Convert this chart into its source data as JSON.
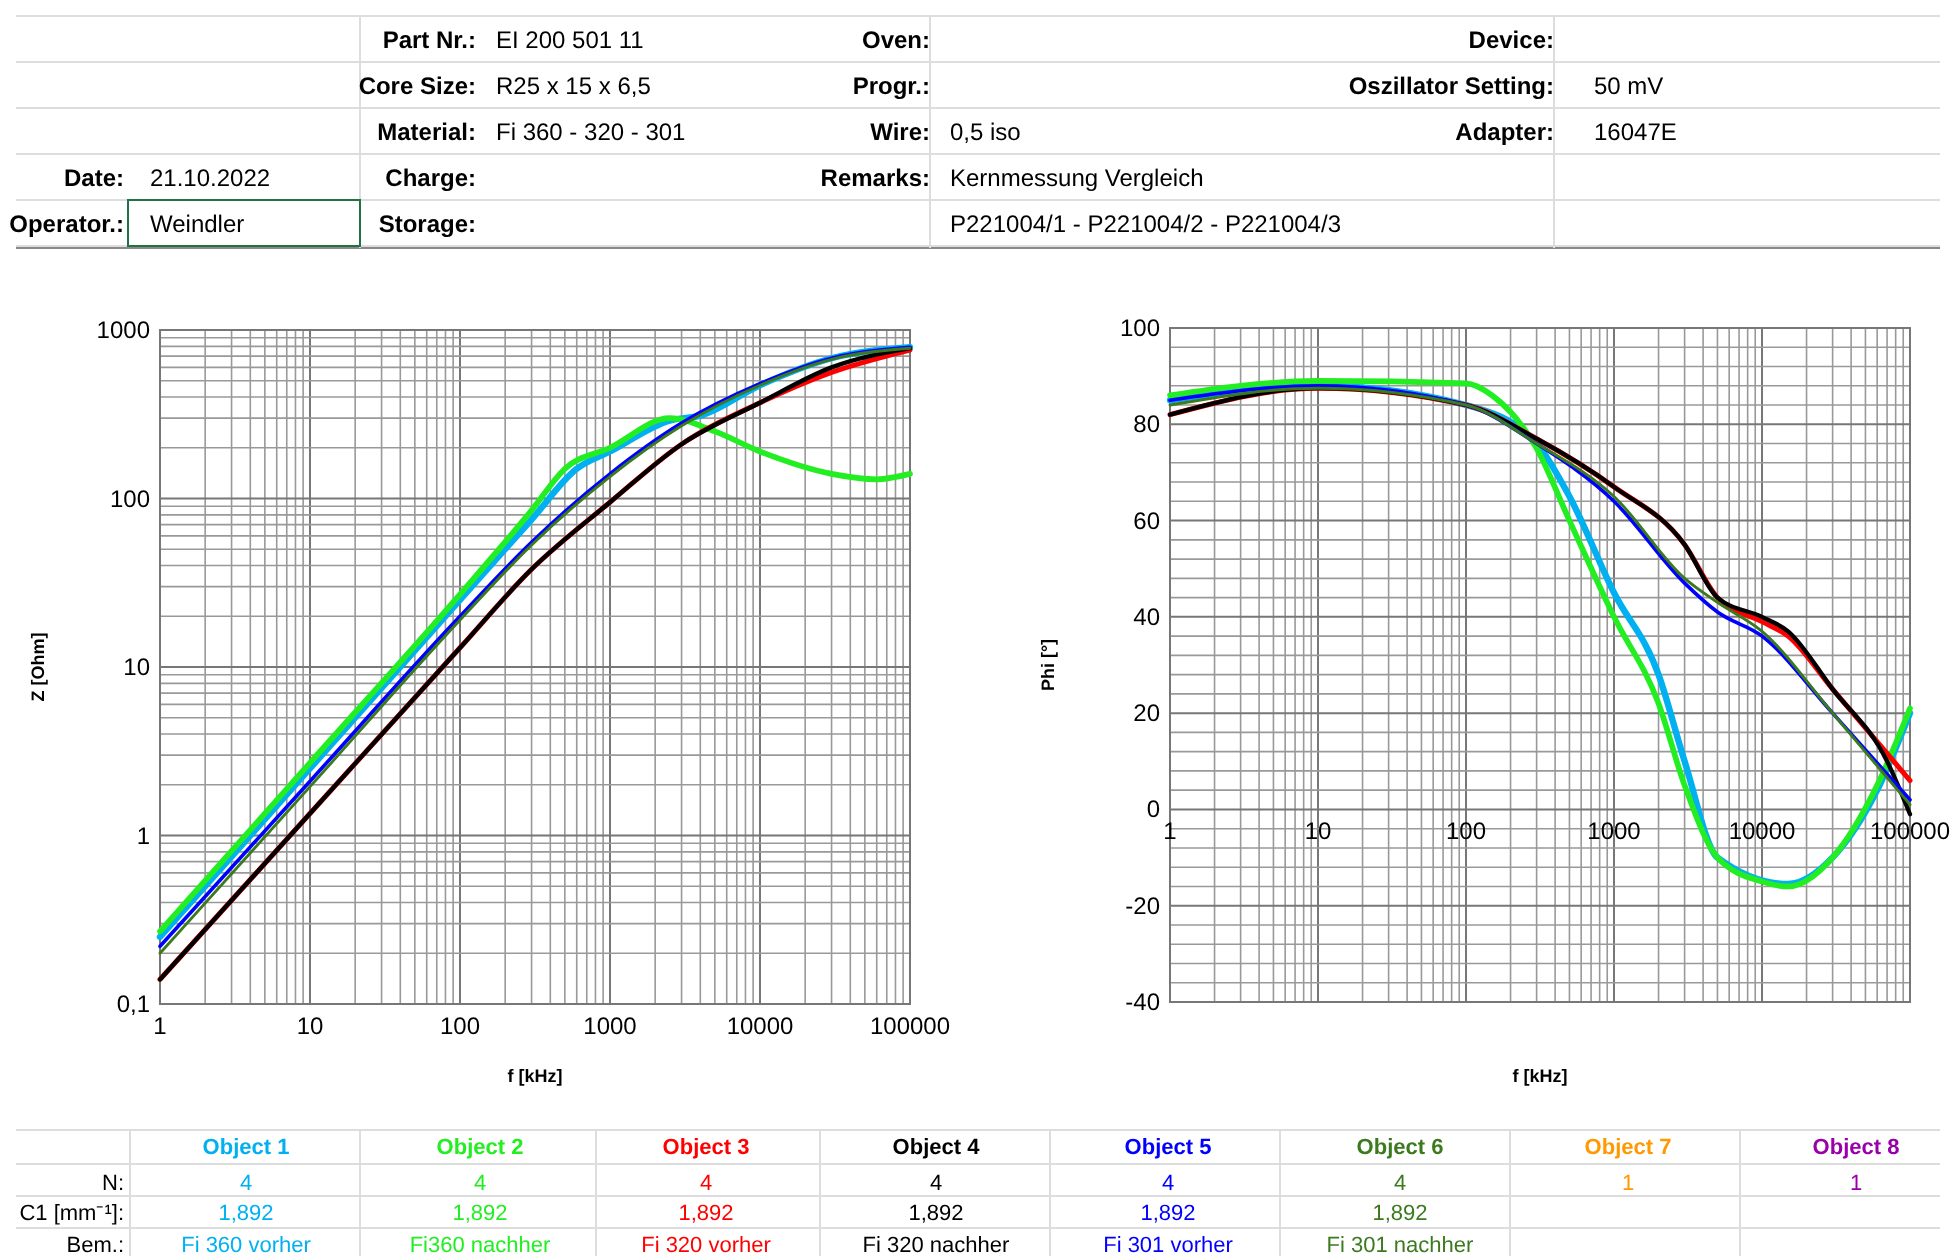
{
  "chart_data": [
    {
      "type": "other",
      "annotations": [
        "Part Nr.:",
        "EI 200 501 11",
        "Core Size:",
        "R25 x 15 x 6,5",
        "Material:",
        "Fi 360 - 320 - 301",
        "Oven:",
        "Progr.:",
        "Wire:",
        "0,5 iso",
        "Device:",
        "Oszillator Setting:",
        "50 mV",
        "Adapter:",
        "16047E",
        "Date:",
        "21.10.2022",
        "Operator.:",
        "Weindler",
        "Charge:",
        "Storage:",
        "Remarks:",
        "Kernmessung Vergleich",
        "P221004/1 - P221004/2 - P221004/3"
      ]
    },
    {
      "type": "line",
      "ylabel": "Z [Ohm]",
      "xlabel": "f [kHz]",
      "log": "xy",
      "grid": true,
      "legend": "bottom",
      "xlim": [
        1,
        100000
      ],
      "ylim": [
        0.1,
        1000
      ],
      "xticks": [
        1,
        10,
        100,
        1000,
        10000,
        100000
      ],
      "yticks": [
        {
          "value": 0.1,
          "label": "0,1"
        },
        1,
        10,
        100,
        1000
      ],
      "series": [
        {
          "name": "Object 1",
          "color": "#00b0f0",
          "x": [
            1,
            10,
            100,
            300,
            600,
            1000,
            2500,
            4000,
            10000,
            30000,
            100000
          ],
          "values": [
            0.25,
            2.5,
            25,
            75,
            150,
            190,
            290,
            310,
            470,
            680,
            790
          ]
        },
        {
          "name": "Object 2",
          "color": "#22ee22",
          "x": [
            1,
            10,
            100,
            300,
            500,
            1000,
            2500,
            5000,
            10000,
            30000,
            60000,
            100000
          ],
          "values": [
            0.27,
            2.7,
            27,
            85,
            150,
            200,
            300,
            250,
            190,
            140,
            130,
            140
          ]
        },
        {
          "name": "Object 3",
          "color": "#ff0000",
          "x": [
            1,
            10,
            100,
            300,
            1000,
            3000,
            10000,
            30000,
            100000
          ],
          "values": [
            0.14,
            1.35,
            13,
            38,
            95,
            210,
            370,
            560,
            760
          ]
        },
        {
          "name": "Object 4",
          "color": "#000000",
          "x": [
            1,
            10,
            100,
            300,
            1000,
            3000,
            10000,
            30000,
            100000
          ],
          "values": [
            0.14,
            1.35,
            13,
            38,
            95,
            210,
            370,
            600,
            780
          ]
        },
        {
          "name": "Object 5",
          "color": "#0000ff",
          "x": [
            1,
            10,
            100,
            300,
            1000,
            3000,
            10000,
            30000,
            100000
          ],
          "values": [
            0.22,
            2.1,
            20,
            55,
            140,
            280,
            480,
            680,
            790
          ]
        },
        {
          "name": "Object 6",
          "color": "#3c7a1e",
          "x": [
            1,
            10,
            100,
            300,
            1000,
            3000,
            10000,
            30000,
            100000
          ],
          "values": [
            0.2,
            1.95,
            19,
            53,
            135,
            270,
            470,
            670,
            780
          ]
        }
      ]
    },
    {
      "type": "line",
      "ylabel": "Phi [°]",
      "xlabel": "f [kHz]",
      "log": "x",
      "grid": true,
      "xlim": [
        1,
        100000
      ],
      "ylim": [
        -40,
        100
      ],
      "xticks": [
        1,
        10,
        100,
        1000,
        10000,
        100000
      ],
      "yticks": [
        -40,
        -20,
        0,
        20,
        40,
        60,
        80,
        100
      ],
      "series": [
        {
          "color": "#00b0f0",
          "x": [
            1,
            10,
            100,
            300,
            500,
            1000,
            2000,
            3000,
            5000,
            15000,
            30000,
            60000,
            100000
          ],
          "values": [
            85,
            88,
            84,
            76,
            65,
            45,
            28,
            10,
            -10,
            -15.5,
            -10,
            4,
            20
          ]
        },
        {
          "color": "#22ee22",
          "x": [
            1,
            3,
            10,
            100,
            150,
            300,
            500,
            1000,
            2000,
            3000,
            5000,
            10000,
            15000,
            30000,
            60000,
            100000
          ],
          "values": [
            86,
            88,
            89,
            88.5,
            86,
            75,
            60,
            40,
            22,
            5,
            -10,
            -15,
            -16,
            -10,
            5,
            21
          ]
        },
        {
          "color": "#ff0000",
          "x": [
            1,
            10,
            100,
            300,
            1000,
            3000,
            5000,
            10000,
            15000,
            30000,
            100000
          ],
          "values": [
            82,
            87.5,
            84,
            77,
            67,
            55,
            44,
            39,
            36,
            25,
            6
          ]
        },
        {
          "color": "#000000",
          "x": [
            1,
            10,
            100,
            300,
            1000,
            3000,
            5000,
            10000,
            15000,
            30000,
            70000,
            100000
          ],
          "values": [
            82,
            87.5,
            84,
            77,
            67,
            55,
            44,
            40,
            37,
            25,
            10,
            -1
          ]
        },
        {
          "color": "#0000ff",
          "x": [
            1,
            10,
            100,
            300,
            1000,
            3000,
            5000,
            10000,
            30000,
            100000
          ],
          "values": [
            85,
            88,
            84,
            76,
            64,
            47,
            41,
            36,
            20,
            2
          ]
        },
        {
          "color": "#3c7a1e",
          "x": [
            1,
            10,
            100,
            300,
            1000,
            3000,
            5000,
            10000,
            30000,
            100000
          ],
          "values": [
            84,
            87.5,
            84,
            76,
            65,
            48,
            43,
            37,
            20,
            1
          ]
        }
      ]
    },
    {
      "type": "other",
      "colors": [
        "#00b0f0",
        "#22ee22",
        "#ff0000",
        "#000000",
        "#0000ff",
        "#3c7a1e",
        "#ff9900",
        "#9900aa"
      ],
      "annotations": [
        "N:",
        "C1 [mm⁻¹]:",
        "Bem.:",
        "4",
        "1,892",
        "Fi 360 vorher",
        "4",
        "1,892",
        "Fi360 nachher",
        "4",
        "1,892",
        "Fi 320 vorher",
        "4",
        "1,892",
        "Fi 320 nachher",
        "4",
        "1,892",
        "Fi 301 vorher",
        "4",
        "1,892",
        "Fi 301 nachher",
        "Object 7",
        "1",
        "Object 8",
        "1"
      ]
    }
  ]
}
